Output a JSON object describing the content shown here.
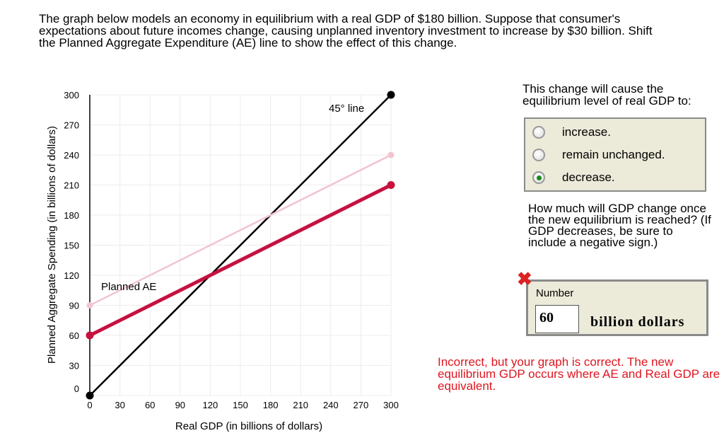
{
  "prompt": "The graph below models an economy in equilibrium with a real GDP of $180 billion. Suppose that consumer's expectations about future incomes change, causing unplanned inventory investment to increase by $30 billion. Shift the Planned Aggregate Expenditure (AE) line to show the effect of this change.",
  "question1": "This change will cause the equilibrium level of real GDP to:",
  "options": [
    {
      "label": "increase.",
      "selected": false
    },
    {
      "label": "remain unchanged.",
      "selected": false
    },
    {
      "label": "decrease.",
      "selected": true
    }
  ],
  "question2": "How much will GDP change once the new equilibrium is reached? (If GDP decreases, be sure to include a negative sign.)",
  "answer": {
    "label": "Number",
    "value": "60",
    "units": "billion dollars",
    "status": "incorrect",
    "status_icon": "red-x-icon"
  },
  "feedback": "Incorrect, but  your graph is correct. The new equilibrium GDP occurs where AE and Real GDP are equivalent.",
  "colors": {
    "ae": "#c8103e",
    "ae_original": "#f2c4d0",
    "line45": "#000000",
    "feedback": "#e0141e"
  },
  "chart_data": {
    "type": "line",
    "xlabel": "Real GDP (in billions of dollars)",
    "ylabel": "Planned Aggregate Spending (in billions of dollars)",
    "xlim": [
      0,
      300
    ],
    "ylim": [
      0,
      300
    ],
    "grid": true,
    "xticks": [
      "0",
      "30",
      "60",
      "90",
      "120",
      "150",
      "180",
      "210",
      "240",
      "270",
      "300"
    ],
    "yticks": [
      "0",
      "30",
      "60",
      "90",
      "120",
      "150",
      "180",
      "210",
      "240",
      "270",
      "300"
    ],
    "series": [
      {
        "name": "45° line",
        "points": [
          [
            0,
            0
          ],
          [
            300,
            300
          ]
        ],
        "color": "#000000"
      },
      {
        "name": "",
        "points": [
          [
            0,
            90
          ],
          [
            300,
            240
          ]
        ],
        "color": "#f2c4d0"
      },
      {
        "name": "Planned AE",
        "points": [
          [
            0,
            60
          ],
          [
            300,
            210
          ]
        ],
        "color": "#c8103e"
      }
    ]
  }
}
